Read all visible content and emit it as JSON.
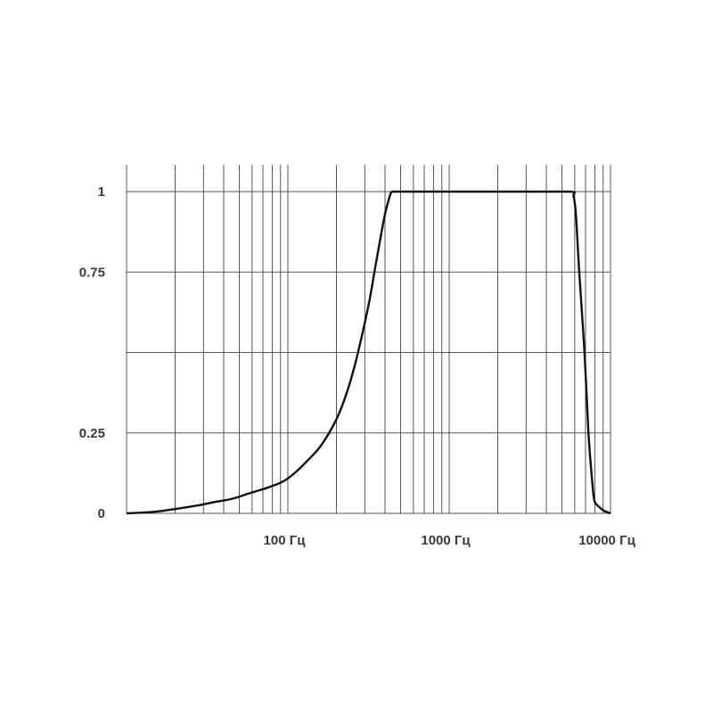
{
  "chart_data": {
    "type": "line",
    "title": "",
    "xlabel": "",
    "ylabel": "",
    "x_scale": "log",
    "xlim": [
      10,
      10000
    ],
    "ylim": [
      0,
      1
    ],
    "grid": true,
    "x_tick_labels": [
      {
        "value": 100,
        "label": "100 Гц"
      },
      {
        "value": 1000,
        "label": "1000 Гц"
      },
      {
        "value": 10000,
        "label": "10000 Гц"
      }
    ],
    "y_tick_labels": [
      {
        "value": 1,
        "label": "1"
      },
      {
        "value": 0.75,
        "label": "0.75"
      },
      {
        "value": 0.25,
        "label": "0.25"
      },
      {
        "value": 0,
        "label": "0"
      }
    ],
    "y_gridlines": [
      0,
      0.25,
      0.5,
      0.75,
      1
    ],
    "colors": {
      "line": "#111111",
      "grid": "#555555",
      "text": "#3a3a3a"
    },
    "series": [
      {
        "x": [
          10,
          15,
          21,
          28,
          35,
          45,
          60,
          75,
          94,
          110,
          130,
          160,
          199,
          230,
          260,
          290,
          320,
          344,
          370,
          400,
          425,
          443,
          500,
          1000,
          3000,
          5640,
          5900,
          6100,
          6400,
          6900,
          7300,
          7700,
          7940,
          8500,
          9200,
          10000
        ],
        "y": [
          0,
          0.005,
          0.015,
          0.025,
          0.035,
          0.045,
          0.065,
          0.08,
          0.1,
          0.125,
          0.16,
          0.21,
          0.29,
          0.37,
          0.46,
          0.56,
          0.66,
          0.75,
          0.84,
          0.93,
          0.98,
          1.0,
          1.0,
          1.0,
          1.0,
          1.0,
          0.985,
          0.93,
          0.75,
          0.5,
          0.25,
          0.1,
          0.04,
          0.02,
          0.007,
          0
        ]
      }
    ]
  }
}
